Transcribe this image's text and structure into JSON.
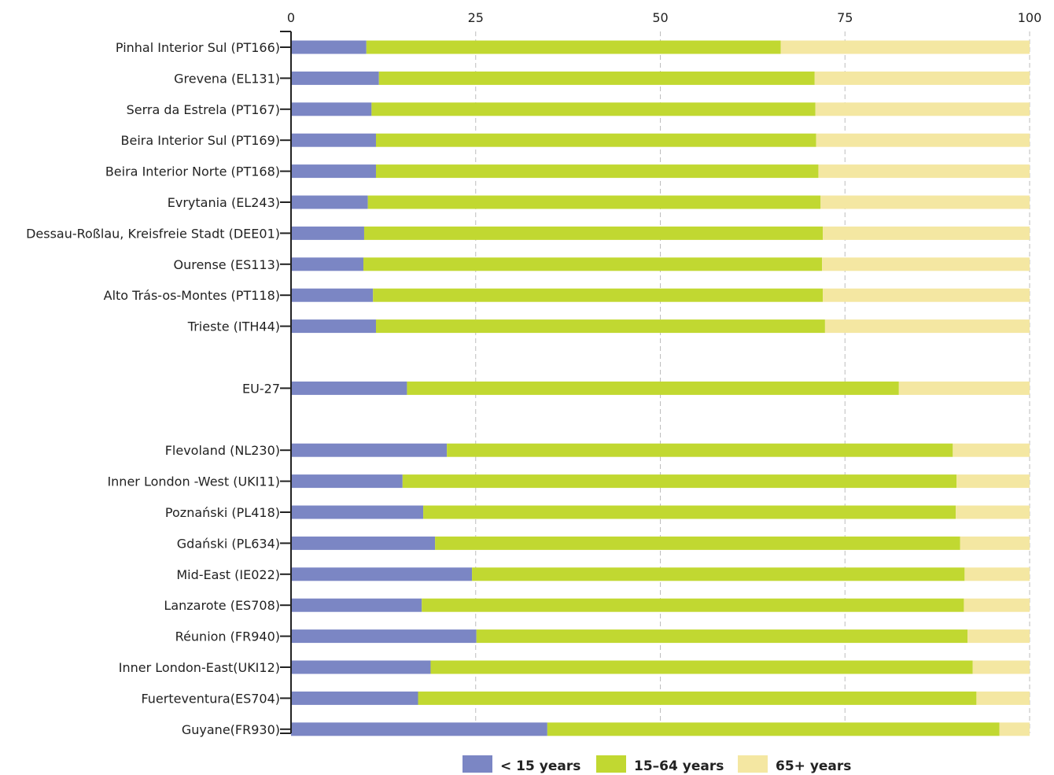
{
  "chart_data": {
    "type": "bar",
    "orientation": "horizontal",
    "stacked": true,
    "xlim": [
      0,
      100
    ],
    "x_ticks": [
      "0",
      "25",
      "50",
      "75",
      "100"
    ],
    "grid": true,
    "legend_position": "bottom",
    "categories": [
      "Pinhal Interior Sul (PT166)",
      "Grevena (EL131)",
      "Serra da Estrela (PT167)",
      "Beira Interior Sul (PT169)",
      "Beira Interior Norte (PT168)",
      "Evrytania (EL243)",
      "Dessau-Roßlau, Kreisfreie Stadt (DEE01)",
      "Ourense (ES113)",
      "Alto Trás-os-Montes (PT118)",
      "Trieste (ITH44)",
      "",
      "EU-27",
      "",
      "Flevoland (NL230)",
      "Inner London -West (UKI11)",
      "Poznański (PL418)",
      "Gdański (PL634)",
      "Mid-East (IE022)",
      "Lanzarote (ES708)",
      "Réunion (FR940)",
      "Inner London-East(UKI12)",
      "Fuerteventura(ES704)",
      "Guyane(FR930)"
    ],
    "series": [
      {
        "name": "< 15 years",
        "color": "#7b86c4",
        "values": [
          10.2,
          11.9,
          10.9,
          11.5,
          11.5,
          10.4,
          9.9,
          9.8,
          11.1,
          11.5,
          null,
          15.7,
          null,
          21.1,
          15.1,
          17.9,
          19.5,
          24.5,
          17.7,
          25.1,
          18.9,
          17.2,
          34.7
        ]
      },
      {
        "name": "15–64 years",
        "color": "#c1d831",
        "values": [
          56.1,
          59.0,
          60.1,
          59.6,
          59.9,
          61.3,
          62.1,
          62.1,
          60.9,
          60.8,
          null,
          66.6,
          null,
          68.5,
          75.0,
          72.1,
          71.1,
          66.7,
          73.4,
          66.5,
          73.4,
          75.6,
          61.2
        ]
      },
      {
        "name": "65+ years",
        "color": "#f4e7a2",
        "values": [
          33.7,
          29.1,
          29.0,
          28.9,
          28.6,
          28.3,
          28.0,
          28.1,
          28.0,
          27.7,
          null,
          17.7,
          null,
          10.4,
          9.9,
          10.0,
          9.4,
          8.8,
          8.9,
          8.4,
          7.7,
          7.2,
          4.1
        ]
      }
    ]
  }
}
